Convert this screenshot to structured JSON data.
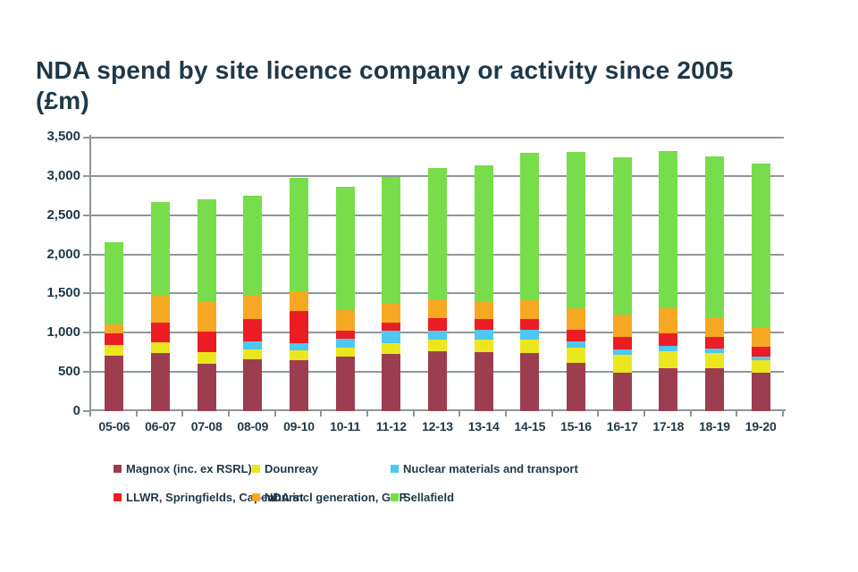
{
  "title": "NDA spend by site licence company or activity since 2005\n(£m)",
  "colors": {
    "background": "#ffffff",
    "text": "#1e3849",
    "grid": "#8e979a"
  },
  "chart_data": {
    "type": "bar",
    "stacked": true,
    "title": "NDA spend by site licence company or activity since 2005 (£m)",
    "xlabel": "",
    "ylabel": "",
    "ylim": [
      0,
      3500
    ],
    "ytick_step": 500,
    "ytick_labels": [
      "0",
      "500",
      "1,000",
      "1,500",
      "2,000",
      "2,500",
      "3,000",
      "3,500"
    ],
    "grid": true,
    "legend_position": "bottom",
    "legend_columns": 3,
    "categories": [
      "05-06",
      "06-07",
      "07-08",
      "08-09",
      "09-10",
      "10-11",
      "11-12",
      "12-13",
      "13-14",
      "14-15",
      "15-16",
      "16-17",
      "17-18",
      "18-19",
      "19-20"
    ],
    "series": [
      {
        "name": "Magnox (inc. ex RSRL)",
        "color": "#9c3e4f",
        "values": [
          710,
          745,
          610,
          660,
          645,
          700,
          730,
          765,
          750,
          740,
          615,
          490,
          550,
          550,
          490
        ]
      },
      {
        "name": "Dounreay",
        "color": "#ebe71f",
        "values": [
          130,
          135,
          145,
          130,
          130,
          110,
          135,
          150,
          160,
          170,
          190,
          230,
          215,
          195,
          155
        ]
      },
      {
        "name": "Nuclear materials and transport",
        "color": "#4ec7f1",
        "values": [
          0,
          0,
          0,
          100,
          95,
          110,
          160,
          110,
          130,
          125,
          85,
          65,
          65,
          55,
          55
        ]
      },
      {
        "name": "LLWR, Springfields, Capenhurst",
        "color": "#ec1c24",
        "values": [
          150,
          250,
          255,
          290,
          410,
          105,
          100,
          165,
          130,
          140,
          150,
          160,
          165,
          145,
          120
        ]
      },
      {
        "name": "NDA incl generation, GDF",
        "color": "#f7a823",
        "values": [
          120,
          350,
          380,
          290,
          250,
          260,
          250,
          230,
          230,
          235,
          275,
          290,
          320,
          255,
          245
        ]
      },
      {
        "name": "Sellafield",
        "color": "#78dd4b",
        "values": [
          1050,
          1190,
          1310,
          1280,
          1445,
          1575,
          1610,
          1685,
          1740,
          1890,
          1990,
          2000,
          2005,
          2045,
          2095
        ]
      }
    ],
    "totals": [
      2160,
      2670,
      2700,
      2750,
      2975,
      2860,
      2985,
      3105,
      3140,
      3300,
      3305,
      3235,
      3320,
      3245,
      3160
    ]
  },
  "legend": {
    "row1": [
      "Magnox (inc. ex RSRL)",
      "Dounreay",
      "Nuclear materials and transport"
    ],
    "row2": [
      "LLWR, Springfields, Capenhurst",
      "NDA incl generation, GDF",
      "Sellafield"
    ]
  }
}
